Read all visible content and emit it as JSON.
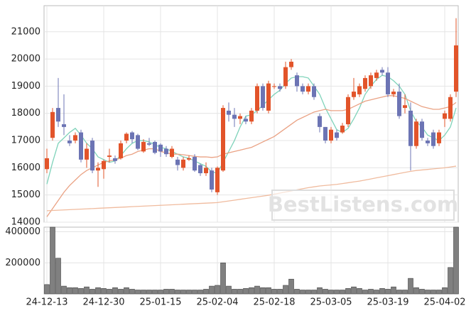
{
  "chart_data": {
    "type": "candlestick",
    "categories": [
      "24-12-13",
      null,
      null,
      null,
      null,
      null,
      null,
      null,
      null,
      null,
      "24-12-30",
      null,
      null,
      null,
      null,
      null,
      null,
      null,
      null,
      null,
      "25-01-15",
      null,
      null,
      null,
      null,
      null,
      null,
      null,
      null,
      null,
      "25-02-04",
      null,
      null,
      null,
      null,
      null,
      null,
      null,
      null,
      null,
      "25-02-18",
      null,
      null,
      null,
      null,
      null,
      null,
      null,
      null,
      null,
      "25-03-05",
      null,
      null,
      null,
      null,
      null,
      null,
      null,
      null,
      null,
      "25-03-19",
      null,
      null,
      null,
      null,
      null,
      null,
      null,
      null,
      null,
      "25-04-02",
      null,
      null
    ],
    "open": [
      15950,
      17100,
      18200,
      17600,
      17000,
      17000,
      17300,
      16300,
      17000,
      15900,
      15950,
      16400,
      16350,
      16350,
      17000,
      17300,
      17200,
      16600,
      16900,
      16950,
      16850,
      16700,
      16400,
      16300,
      16000,
      16300,
      16400,
      16100,
      15800,
      15900,
      15100,
      15900,
      18100,
      17950,
      17800,
      17800,
      17700,
      18100,
      19000,
      18100,
      19000,
      19000,
      19000,
      19700,
      19400,
      19000,
      18800,
      19000,
      17900,
      17500,
      17000,
      17300,
      17300,
      17600,
      18600,
      18700,
      18900,
      19000,
      19300,
      19600,
      19500,
      18700,
      18800,
      18200,
      18100,
      16800,
      17700,
      17000,
      17300,
      16900,
      17800,
      17800,
      18800
    ],
    "high": [
      16700,
      18200,
      19300,
      18700,
      17200,
      17300,
      17400,
      16900,
      17100,
      16200,
      16300,
      16700,
      16450,
      17000,
      17300,
      17350,
      17250,
      17050,
      17100,
      17000,
      16900,
      16800,
      16800,
      16400,
      16400,
      16450,
      16500,
      16150,
      16200,
      16000,
      16050,
      18300,
      18400,
      18200,
      18000,
      17900,
      18200,
      19100,
      19100,
      19200,
      19100,
      19100,
      19900,
      20000,
      19500,
      19100,
      19100,
      19100,
      18000,
      17500,
      17500,
      17400,
      17650,
      18700,
      19300,
      19100,
      19400,
      19500,
      19600,
      19700,
      19700,
      18900,
      19100,
      18700,
      18400,
      17800,
      17800,
      17100,
      17400,
      17400,
      18100,
      18700,
      21500
    ],
    "low": [
      15800,
      17000,
      17500,
      17200,
      16800,
      16900,
      16200,
      16000,
      15800,
      15300,
      15600,
      16200,
      16150,
      16300,
      16900,
      16900,
      16650,
      16550,
      16800,
      16500,
      16400,
      16400,
      16350,
      15900,
      15900,
      16250,
      15850,
      15700,
      15700,
      15100,
      15000,
      15850,
      17700,
      17500,
      17600,
      17600,
      17600,
      18000,
      18100,
      18000,
      18900,
      18800,
      18900,
      19600,
      18800,
      18700,
      18700,
      18500,
      17300,
      16900,
      16900,
      17000,
      17250,
      17500,
      18500,
      18600,
      18800,
      18900,
      19200,
      19400,
      18600,
      18600,
      17800,
      18000,
      15900,
      16700,
      17000,
      16800,
      16700,
      16800,
      17500,
      17700,
      18600
    ],
    "close": [
      16350,
      18050,
      17700,
      17500,
      16900,
      17200,
      16300,
      16700,
      15900,
      16000,
      16250,
      16450,
      16250,
      16900,
      17250,
      17050,
      16700,
      16950,
      16850,
      16550,
      16600,
      16500,
      16700,
      16100,
      16300,
      16350,
      15900,
      15800,
      16000,
      15200,
      16000,
      18200,
      17950,
      17800,
      17900,
      17700,
      18100,
      19000,
      18200,
      19100,
      19000,
      18900,
      19700,
      19900,
      19000,
      18800,
      19000,
      18600,
      17500,
      17000,
      17400,
      17100,
      17550,
      18600,
      18800,
      19000,
      19300,
      19400,
      19500,
      19500,
      18700,
      18800,
      17900,
      18300,
      16800,
      17700,
      17100,
      16900,
      16800,
      17300,
      18000,
      18600,
      20500
    ],
    "up_color": "#e2542a",
    "down_color": "#6c74b4",
    "moving_averages": [
      {
        "color": "#7fd3ba",
        "values": [
          15400,
          16200,
          16900,
          17100,
          17300,
          17450,
          17200,
          16900,
          16700,
          16400,
          16300,
          16200,
          16250,
          16450,
          16700,
          16900,
          17000,
          17000,
          16950,
          16850,
          16750,
          16700,
          16600,
          16500,
          16400,
          16350,
          16250,
          16150,
          16050,
          15850,
          15800,
          16200,
          16600,
          17000,
          17500,
          17900,
          17950,
          18100,
          18300,
          18500,
          18700,
          18850,
          19100,
          19300,
          19350,
          19350,
          19300,
          19000,
          18700,
          18200,
          17800,
          17400,
          17300,
          17450,
          17800,
          18200,
          18700,
          19000,
          19250,
          19400,
          19350,
          19200,
          19000,
          18700,
          18100,
          17700,
          17500,
          17200,
          17100,
          17000,
          17200,
          17500,
          18200
        ]
      },
      {
        "color": "#eaa284",
        "values": [
          14200,
          14500,
          14800,
          15100,
          15350,
          15550,
          15750,
          15900,
          16000,
          16100,
          16200,
          16250,
          16300,
          16350,
          16450,
          16500,
          16600,
          16650,
          16700,
          16700,
          16600,
          16550,
          16500,
          16500,
          16480,
          16450,
          16420,
          16400,
          16400,
          16380,
          16400,
          16500,
          16550,
          16600,
          16650,
          16700,
          16750,
          16850,
          16950,
          17050,
          17150,
          17300,
          17450,
          17600,
          17750,
          17850,
          17950,
          18050,
          18100,
          18150,
          18100,
          18100,
          18100,
          18150,
          18250,
          18350,
          18450,
          18500,
          18550,
          18600,
          18650,
          18650,
          18600,
          18550,
          18450,
          18350,
          18250,
          18200,
          18150,
          18150,
          18200,
          18250,
          18400
        ]
      },
      {
        "color": "#f0bb9e",
        "values": [
          14420,
          14430,
          14440,
          14450,
          14460,
          14470,
          14480,
          14490,
          14500,
          14510,
          14520,
          14530,
          14540,
          14550,
          14560,
          14570,
          14580,
          14590,
          14600,
          14610,
          14620,
          14630,
          14640,
          14650,
          14660,
          14670,
          14680,
          14690,
          14700,
          14710,
          14720,
          14750,
          14780,
          14810,
          14840,
          14870,
          14900,
          14930,
          14960,
          14990,
          15030,
          15070,
          15110,
          15150,
          15190,
          15230,
          15270,
          15300,
          15330,
          15350,
          15370,
          15390,
          15420,
          15450,
          15480,
          15510,
          15550,
          15590,
          15630,
          15670,
          15710,
          15750,
          15790,
          15830,
          15870,
          15900,
          15920,
          15940,
          15960,
          15980,
          16000,
          16030,
          16060
        ]
      }
    ],
    "ylim": [
      14000,
      21960
    ],
    "yticks": [
      14000,
      15000,
      16000,
      17000,
      18000,
      19000,
      20000,
      21000
    ],
    "volume": {
      "color": "#808080",
      "values": [
        60000,
        430000,
        230000,
        50000,
        40000,
        40000,
        35000,
        45000,
        30000,
        40000,
        35000,
        30000,
        40000,
        30000,
        40000,
        30000,
        25000,
        25000,
        25000,
        25000,
        25000,
        30000,
        30000,
        25000,
        25000,
        25000,
        25000,
        25000,
        30000,
        50000,
        55000,
        200000,
        50000,
        30000,
        30000,
        35000,
        40000,
        50000,
        40000,
        40000,
        30000,
        30000,
        55000,
        95000,
        30000,
        25000,
        25000,
        25000,
        40000,
        30000,
        25000,
        25000,
        25000,
        35000,
        45000,
        35000,
        25000,
        30000,
        25000,
        35000,
        30000,
        45000,
        25000,
        25000,
        100000,
        40000,
        30000,
        25000,
        25000,
        25000,
        40000,
        170000,
        430000
      ],
      "ylim": [
        0,
        430000
      ],
      "yticks": [
        200000,
        400000
      ]
    },
    "watermark": "BestListens.com"
  }
}
